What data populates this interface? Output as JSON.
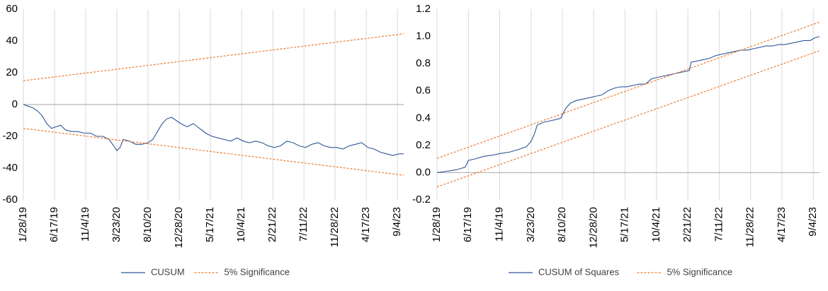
{
  "chart_data": [
    {
      "type": "line",
      "title": "",
      "xlabel": "",
      "ylabel": "",
      "x_range": [
        "1/28/19",
        "10/2/23"
      ],
      "ylim": [
        -60,
        60
      ],
      "y_ticks": [
        -60,
        -40,
        -20,
        0,
        20,
        40,
        60
      ],
      "x_ticks": [
        "1/28/19",
        "6/17/19",
        "11/4/19",
        "3/23/20",
        "8/10/20",
        "12/28/20",
        "5/17/21",
        "10/4/21",
        "2/21/22",
        "7/11/22",
        "11/28/22",
        "4/17/23",
        "9/4/23"
      ],
      "grid": "vertical",
      "legend": "bottom-center",
      "series": [
        {
          "name": "CUSUM",
          "color": "#2f5597",
          "style": "solid",
          "points": [
            [
              "1/28/19",
              0
            ],
            [
              "2/18/19",
              -1
            ],
            [
              "3/11/19",
              -2
            ],
            [
              "4/1/19",
              -4
            ],
            [
              "4/22/19",
              -7
            ],
            [
              "5/13/19",
              -12
            ],
            [
              "6/3/19",
              -15
            ],
            [
              "6/24/19",
              -14
            ],
            [
              "7/15/19",
              -13
            ],
            [
              "8/5/19",
              -16
            ],
            [
              "9/2/19",
              -17
            ],
            [
              "9/30/19",
              -17
            ],
            [
              "10/28/19",
              -18
            ],
            [
              "11/25/19",
              -18
            ],
            [
              "12/23/19",
              -20
            ],
            [
              "1/20/20",
              -20
            ],
            [
              "2/17/20",
              -22
            ],
            [
              "3/9/20",
              -26
            ],
            [
              "3/23/20",
              -29
            ],
            [
              "4/6/20",
              -27
            ],
            [
              "4/20/20",
              -22
            ],
            [
              "5/18/20",
              -23
            ],
            [
              "6/15/20",
              -25
            ],
            [
              "7/13/20",
              -25
            ],
            [
              "8/10/20",
              -24
            ],
            [
              "8/31/20",
              -22
            ],
            [
              "9/21/20",
              -17
            ],
            [
              "10/12/20",
              -12
            ],
            [
              "11/2/20",
              -9
            ],
            [
              "11/23/20",
              -8
            ],
            [
              "12/14/20",
              -10
            ],
            [
              "1/4/21",
              -12
            ],
            [
              "2/1/21",
              -14
            ],
            [
              "3/1/21",
              -12
            ],
            [
              "3/29/21",
              -15
            ],
            [
              "4/26/21",
              -18
            ],
            [
              "5/24/21",
              -20
            ],
            [
              "6/21/21",
              -21
            ],
            [
              "7/19/21",
              -22
            ],
            [
              "8/16/21",
              -23
            ],
            [
              "9/13/21",
              -21
            ],
            [
              "10/11/21",
              -23
            ],
            [
              "11/8/21",
              -24
            ],
            [
              "12/6/21",
              -23
            ],
            [
              "1/3/22",
              -24
            ],
            [
              "1/31/22",
              -26
            ],
            [
              "2/28/22",
              -27
            ],
            [
              "3/28/22",
              -26
            ],
            [
              "4/25/22",
              -23
            ],
            [
              "5/23/22",
              -24
            ],
            [
              "6/20/22",
              -26
            ],
            [
              "7/18/22",
              -27
            ],
            [
              "8/15/22",
              -25
            ],
            [
              "9/12/22",
              -24
            ],
            [
              "10/10/22",
              -26
            ],
            [
              "11/7/22",
              -27
            ],
            [
              "12/5/22",
              -27
            ],
            [
              "1/2/23",
              -28
            ],
            [
              "1/30/23",
              -26
            ],
            [
              "2/27/23",
              -25
            ],
            [
              "3/27/23",
              -24
            ],
            [
              "4/24/23",
              -27
            ],
            [
              "5/22/23",
              -28
            ],
            [
              "6/19/23",
              -30
            ],
            [
              "7/17/23",
              -31
            ],
            [
              "8/14/23",
              -32
            ],
            [
              "9/11/23",
              -31
            ],
            [
              "10/2/23",
              -31
            ]
          ]
        },
        {
          "name": "5% Significance",
          "color": "#ed7d31",
          "style": "dashed",
          "points": [
            [
              "1/28/19",
              15
            ],
            [
              "10/2/23",
              44.5
            ]
          ]
        },
        {
          "name": "5% Significance",
          "color": "#ed7d31",
          "style": "dashed",
          "legend": false,
          "points": [
            [
              "1/28/19",
              -15
            ],
            [
              "10/2/23",
              -44.5
            ]
          ]
        }
      ]
    },
    {
      "type": "line",
      "title": "",
      "xlabel": "",
      "ylabel": "",
      "x_range": [
        "1/28/19",
        "10/2/23"
      ],
      "ylim": [
        -0.2,
        1.2
      ],
      "y_ticks": [
        "-0.2",
        "0.0",
        "0.2",
        "0.4",
        "0.6",
        "0.8",
        "1.0",
        "1.2"
      ],
      "x_ticks": [
        "1/28/19",
        "6/17/19",
        "11/4/19",
        "3/23/20",
        "8/10/20",
        "12/28/20",
        "5/17/21",
        "10/4/21",
        "2/21/22",
        "7/11/22",
        "11/28/22",
        "4/17/23",
        "9/4/23"
      ],
      "grid": "vertical",
      "legend": "bottom-center",
      "series": [
        {
          "name": "CUSUM of Squares",
          "color": "#2f5597",
          "style": "solid",
          "points": [
            [
              "1/28/19",
              0
            ],
            [
              "3/11/19",
              0.01
            ],
            [
              "4/22/19",
              0.02
            ],
            [
              "6/3/19",
              0.04
            ],
            [
              "6/17/19",
              0.09
            ],
            [
              "7/15/19",
              0.1
            ],
            [
              "8/26/19",
              0.12
            ],
            [
              "10/7/19",
              0.13
            ],
            [
              "11/4/19",
              0.14
            ],
            [
              "12/16/19",
              0.15
            ],
            [
              "1/27/20",
              0.17
            ],
            [
              "3/2/20",
              0.19
            ],
            [
              "3/23/20",
              0.23
            ],
            [
              "4/6/20",
              0.28
            ],
            [
              "4/20/20",
              0.35
            ],
            [
              "5/18/20",
              0.37
            ],
            [
              "6/15/20",
              0.38
            ],
            [
              "7/13/20",
              0.39
            ],
            [
              "8/3/20",
              0.4
            ],
            [
              "8/24/20",
              0.47
            ],
            [
              "9/14/20",
              0.51
            ],
            [
              "10/12/20",
              0.53
            ],
            [
              "11/9/20",
              0.54
            ],
            [
              "12/7/20",
              0.55
            ],
            [
              "1/4/21",
              0.56
            ],
            [
              "2/1/21",
              0.57
            ],
            [
              "3/1/21",
              0.6
            ],
            [
              "3/29/21",
              0.62
            ],
            [
              "4/26/21",
              0.63
            ],
            [
              "5/24/21",
              0.63
            ],
            [
              "6/21/21",
              0.64
            ],
            [
              "7/19/21",
              0.65
            ],
            [
              "8/16/21",
              0.65
            ],
            [
              "9/13/21",
              0.69
            ],
            [
              "10/11/21",
              0.7
            ],
            [
              "11/8/21",
              0.71
            ],
            [
              "12/6/21",
              0.72
            ],
            [
              "1/3/22",
              0.73
            ],
            [
              "1/31/22",
              0.74
            ],
            [
              "2/28/22",
              0.75
            ],
            [
              "3/7/22",
              0.81
            ],
            [
              "4/4/22",
              0.82
            ],
            [
              "5/2/22",
              0.83
            ],
            [
              "5/30/22",
              0.84
            ],
            [
              "6/27/22",
              0.86
            ],
            [
              "7/25/22",
              0.87
            ],
            [
              "8/22/22",
              0.88
            ],
            [
              "9/19/22",
              0.89
            ],
            [
              "10/17/22",
              0.9
            ],
            [
              "11/14/22",
              0.9
            ],
            [
              "12/12/22",
              0.91
            ],
            [
              "1/9/23",
              0.92
            ],
            [
              "2/6/23",
              0.93
            ],
            [
              "3/6/23",
              0.93
            ],
            [
              "4/3/23",
              0.94
            ],
            [
              "5/1/23",
              0.94
            ],
            [
              "5/29/23",
              0.95
            ],
            [
              "6/26/23",
              0.96
            ],
            [
              "7/24/23",
              0.97
            ],
            [
              "8/21/23",
              0.97
            ],
            [
              "9/11/23",
              0.99
            ],
            [
              "10/2/23",
              1.0
            ]
          ]
        },
        {
          "name": "5% Significance",
          "color": "#ed7d31",
          "style": "dashed",
          "points": [
            [
              "1/28/19",
              0.105
            ],
            [
              "10/2/23",
              1.105
            ]
          ]
        },
        {
          "name": "5% Significance",
          "color": "#ed7d31",
          "style": "dashed",
          "legend": false,
          "points": [
            [
              "1/28/19",
              -0.105
            ],
            [
              "10/2/23",
              0.895
            ]
          ]
        }
      ]
    }
  ]
}
